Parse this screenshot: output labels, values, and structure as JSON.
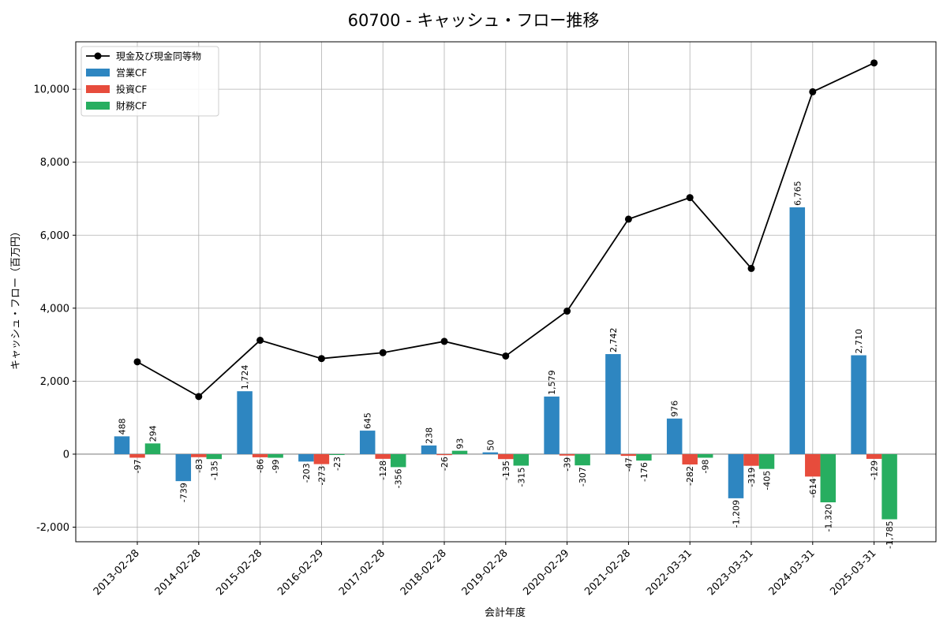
{
  "chart_data": {
    "type": "bar",
    "title": "60700 - キャッシュ・フロー推移",
    "xlabel": "会計年度",
    "ylabel": "キャッシュ・フロー（百万円）",
    "categories": [
      "2013-02-28",
      "2014-02-28",
      "2015-02-28",
      "2016-02-29",
      "2017-02-28",
      "2018-02-28",
      "2019-02-28",
      "2020-02-29",
      "2021-02-28",
      "2022-03-31",
      "2023-03-31",
      "2024-03-31",
      "2025-03-31"
    ],
    "ylim": [
      -2400,
      11300
    ],
    "yticks": [
      -2000,
      0,
      2000,
      4000,
      6000,
      8000,
      10000
    ],
    "ytick_labels": [
      "-2,000",
      "0",
      "2,000",
      "4,000",
      "6,000",
      "8,000",
      "10,000"
    ],
    "grid": true,
    "legend_position": "top-left",
    "series": [
      {
        "name": "営業CF",
        "kind": "bar",
        "color": "#2e86c1",
        "values": [
          488,
          -739,
          1724,
          -203,
          645,
          238,
          50,
          1579,
          2742,
          976,
          -1209,
          6765,
          2710
        ],
        "labels": [
          "488",
          "-739",
          "1,724",
          "-203",
          "645",
          "238",
          "50",
          "1,579",
          "2,742",
          "976",
          "-1,209",
          "6,765",
          "2,710"
        ]
      },
      {
        "name": "投資CF",
        "kind": "bar",
        "color": "#e74c3c",
        "values": [
          -97,
          -83,
          -86,
          -273,
          -128,
          -26,
          -135,
          -39,
          -47,
          -282,
          -319,
          -614,
          -129
        ],
        "labels": [
          "-97",
          "-83",
          "-86",
          "-273",
          "-128",
          "-26",
          "-135",
          "-39",
          "-47",
          "-282",
          "-319",
          "-614",
          "-129"
        ]
      },
      {
        "name": "財務CF",
        "kind": "bar",
        "color": "#27ae60",
        "values": [
          294,
          -135,
          -99,
          -23,
          -356,
          93,
          -315,
          -307,
          -176,
          -98,
          -405,
          -1320,
          -1785
        ],
        "labels": [
          "294",
          "-135",
          "-99",
          "-23",
          "-356",
          "93",
          "-315",
          "-307",
          "-176",
          "-98",
          "-405",
          "-1,320",
          "-1,785"
        ]
      },
      {
        "name": "現金及び現金同等物",
        "kind": "line",
        "color": "#000000",
        "values": [
          2530,
          1580,
          3120,
          2620,
          2780,
          3090,
          2690,
          3920,
          6440,
          7030,
          5090,
          9930,
          10720
        ]
      }
    ]
  }
}
